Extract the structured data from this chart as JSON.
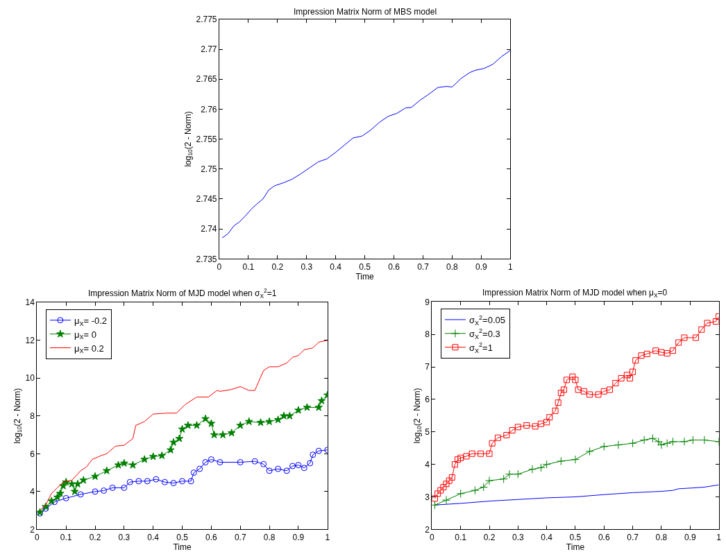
{
  "chart_data": [
    {
      "type": "line",
      "title": "Impression Matrix Norm of MBS model",
      "xlabel": "Time",
      "ylabel": "log$_{10}$(2 - Norm)",
      "xlim": [
        0,
        1
      ],
      "xticks": [
        0,
        0.1,
        0.2,
        0.3,
        0.4,
        0.5,
        0.6,
        0.7,
        0.8,
        0.9,
        1
      ],
      "ylim": [
        2.735,
        2.775
      ],
      "yticks": [
        2.735,
        2.74,
        2.745,
        2.75,
        2.755,
        2.76,
        2.765,
        2.77,
        2.775
      ],
      "grid": false,
      "legend": false,
      "series": [
        {
          "color": "#0000ff",
          "x": [
            0.01,
            0.03,
            0.05,
            0.07,
            0.09,
            0.11,
            0.13,
            0.15,
            0.17,
            0.19,
            0.22,
            0.25,
            0.28,
            0.31,
            0.34,
            0.37,
            0.4,
            0.43,
            0.46,
            0.49,
            0.52,
            0.55,
            0.58,
            0.61,
            0.64,
            0.66,
            0.69,
            0.72,
            0.75,
            0.78,
            0.8,
            0.83,
            0.86,
            0.88,
            0.91,
            0.94,
            0.97,
            1.0
          ],
          "values": [
            2.7385,
            2.7392,
            2.7405,
            2.7412,
            2.7422,
            2.7433,
            2.7442,
            2.745,
            2.7465,
            2.7472,
            2.7477,
            2.7483,
            2.7492,
            2.7502,
            2.7512,
            2.7517,
            2.7528,
            2.754,
            2.7552,
            2.7555,
            2.7565,
            2.7578,
            2.7588,
            2.7593,
            2.7602,
            2.7603,
            2.7615,
            2.7625,
            2.7636,
            2.7638,
            2.7637,
            2.7651,
            2.7661,
            2.7665,
            2.7668,
            2.7675,
            2.7688,
            2.7698
          ]
        }
      ]
    },
    {
      "type": "line",
      "title": "Impression Matrix Norm of MJD model when σ$_{X}$$^{2}$=1",
      "xlabel": "Time",
      "ylabel": "log$_{10}$(2 - Norm)",
      "xlim": [
        0,
        1
      ],
      "xticks": [
        0,
        0.1,
        0.2,
        0.3,
        0.4,
        0.5,
        0.6,
        0.7,
        0.8,
        0.9,
        1
      ],
      "ylim": [
        2,
        14
      ],
      "yticks": [
        2,
        4,
        6,
        8,
        10,
        12,
        14
      ],
      "grid": false,
      "legend": "top left",
      "series": [
        {
          "name": "μ$_{X}$= -0.2",
          "color": "#0000ff",
          "marker": "circle",
          "x": [
            0.01,
            0.03,
            0.06,
            0.1,
            0.15,
            0.2,
            0.23,
            0.26,
            0.3,
            0.32,
            0.35,
            0.38,
            0.41,
            0.44,
            0.47,
            0.5,
            0.53,
            0.54,
            0.56,
            0.58,
            0.6,
            0.63,
            0.7,
            0.75,
            0.78,
            0.8,
            0.83,
            0.86,
            0.88,
            0.9,
            0.92,
            0.94,
            0.95,
            0.97,
            1.0
          ],
          "values": [
            2.85,
            3.1,
            3.45,
            3.65,
            3.85,
            4.0,
            4.05,
            4.2,
            4.2,
            4.5,
            4.55,
            4.55,
            4.65,
            4.5,
            4.45,
            4.55,
            4.55,
            5.0,
            5.2,
            5.55,
            5.7,
            5.55,
            5.55,
            5.6,
            5.45,
            5.1,
            5.2,
            5.1,
            5.35,
            5.4,
            5.25,
            5.5,
            5.95,
            6.15,
            6.2
          ]
        },
        {
          "name": "μ$_{X}$= 0",
          "color": "#008000",
          "marker": "star",
          "x": [
            0.01,
            0.03,
            0.05,
            0.07,
            0.08,
            0.09,
            0.1,
            0.12,
            0.13,
            0.14,
            0.16,
            0.2,
            0.24,
            0.28,
            0.3,
            0.33,
            0.37,
            0.4,
            0.43,
            0.46,
            0.47,
            0.49,
            0.5,
            0.52,
            0.55,
            0.58,
            0.6,
            0.61,
            0.64,
            0.67,
            0.7,
            0.73,
            0.77,
            0.8,
            0.83,
            0.85,
            0.87,
            0.9,
            0.93,
            0.97,
            0.98,
            1.0
          ],
          "values": [
            2.9,
            3.2,
            3.5,
            3.7,
            3.9,
            4.3,
            4.5,
            4.4,
            4.0,
            4.4,
            4.6,
            4.8,
            5.1,
            5.4,
            5.5,
            5.4,
            5.7,
            5.85,
            5.9,
            6.2,
            6.6,
            6.8,
            7.3,
            7.5,
            7.5,
            7.85,
            7.6,
            7.0,
            7.0,
            7.1,
            7.5,
            7.7,
            7.65,
            7.7,
            7.8,
            8.0,
            8.0,
            8.3,
            8.45,
            8.45,
            8.8,
            9.1
          ]
        },
        {
          "name": "μ$_{X}$= 0.2",
          "color": "#ff0000",
          "marker": "none",
          "x": [
            0.01,
            0.03,
            0.05,
            0.07,
            0.09,
            0.12,
            0.15,
            0.17,
            0.19,
            0.22,
            0.24,
            0.27,
            0.3,
            0.33,
            0.34,
            0.37,
            0.4,
            0.45,
            0.48,
            0.51,
            0.55,
            0.59,
            0.62,
            0.63,
            0.67,
            0.7,
            0.73,
            0.75,
            0.78,
            0.8,
            0.83,
            0.86,
            0.88,
            0.9,
            0.92,
            0.95,
            0.97,
            1.0
          ],
          "values": [
            3.0,
            3.3,
            3.9,
            4.2,
            4.5,
            4.6,
            5.1,
            5.3,
            5.7,
            5.9,
            6.0,
            6.4,
            6.45,
            6.8,
            7.5,
            7.7,
            8.1,
            8.15,
            8.15,
            8.6,
            9.0,
            9.0,
            9.35,
            9.3,
            9.4,
            9.55,
            9.35,
            9.35,
            10.4,
            10.6,
            10.6,
            10.8,
            11.1,
            11.2,
            11.5,
            11.6,
            11.9,
            12.0
          ]
        }
      ]
    },
    {
      "type": "line",
      "title": "Impression Matrix Norm of MJD model when μ$_{X}$=0",
      "xlabel": "Time",
      "ylabel": "log$_{10}$(2 - Norm)",
      "xlim": [
        0,
        1
      ],
      "xticks": [
        0,
        0.1,
        0.2,
        0.3,
        0.4,
        0.5,
        0.6,
        0.7,
        0.8,
        0.9,
        1
      ],
      "ylim": [
        2,
        9
      ],
      "yticks": [
        2,
        3,
        4,
        5,
        6,
        7,
        8,
        9
      ],
      "grid": false,
      "legend": "top left",
      "series": [
        {
          "name": "σ$_{X}$$^{2}$=0.05",
          "color": "#0000ff",
          "marker": "none",
          "x": [
            0.01,
            0.1,
            0.2,
            0.3,
            0.4,
            0.5,
            0.6,
            0.7,
            0.8,
            0.84,
            0.86,
            0.9,
            0.95,
            1.0
          ],
          "values": [
            2.75,
            2.8,
            2.87,
            2.92,
            2.97,
            3.0,
            3.07,
            3.13,
            3.17,
            3.2,
            3.25,
            3.27,
            3.3,
            3.37
          ]
        },
        {
          "name": "σ$_{X}$$^{2}$=0.3",
          "color": "#008000",
          "marker": "cross",
          "x": [
            0.01,
            0.05,
            0.1,
            0.15,
            0.18,
            0.2,
            0.25,
            0.27,
            0.3,
            0.35,
            0.38,
            0.4,
            0.45,
            0.5,
            0.55,
            0.6,
            0.65,
            0.7,
            0.74,
            0.77,
            0.79,
            0.8,
            0.82,
            0.84,
            0.88,
            0.91,
            0.95,
            1.0
          ],
          "values": [
            2.75,
            2.9,
            3.1,
            3.2,
            3.3,
            3.5,
            3.55,
            3.7,
            3.7,
            3.85,
            3.9,
            4.0,
            4.1,
            4.15,
            4.4,
            4.55,
            4.6,
            4.65,
            4.75,
            4.8,
            4.7,
            4.6,
            4.65,
            4.7,
            4.7,
            4.75,
            4.75,
            4.7
          ]
        },
        {
          "name": "σ$_{X}$$^{2}$=1",
          "color": "#ff0000",
          "marker": "square",
          "x": [
            0.01,
            0.02,
            0.03,
            0.04,
            0.05,
            0.06,
            0.07,
            0.08,
            0.09,
            0.1,
            0.12,
            0.14,
            0.17,
            0.2,
            0.21,
            0.23,
            0.26,
            0.28,
            0.3,
            0.33,
            0.36,
            0.38,
            0.4,
            0.41,
            0.43,
            0.44,
            0.45,
            0.46,
            0.47,
            0.49,
            0.5,
            0.51,
            0.53,
            0.55,
            0.58,
            0.6,
            0.62,
            0.64,
            0.66,
            0.68,
            0.69,
            0.7,
            0.71,
            0.73,
            0.75,
            0.78,
            0.8,
            0.82,
            0.84,
            0.86,
            0.88,
            0.92,
            0.94,
            0.96,
            0.99,
            1.0
          ],
          "values": [
            2.95,
            3.1,
            3.2,
            3.3,
            3.4,
            3.5,
            3.6,
            4.0,
            4.15,
            4.2,
            4.25,
            4.33,
            4.33,
            4.33,
            4.65,
            4.82,
            4.9,
            5.05,
            5.15,
            5.2,
            5.17,
            5.25,
            5.3,
            5.45,
            5.65,
            5.9,
            6.2,
            6.3,
            6.6,
            6.7,
            6.6,
            6.3,
            6.25,
            6.15,
            6.15,
            6.25,
            6.3,
            6.5,
            6.65,
            6.75,
            6.65,
            6.85,
            7.2,
            7.35,
            7.4,
            7.5,
            7.45,
            7.42,
            7.5,
            7.75,
            7.9,
            7.9,
            8.15,
            8.35,
            8.4,
            8.55
          ]
        }
      ]
    }
  ]
}
